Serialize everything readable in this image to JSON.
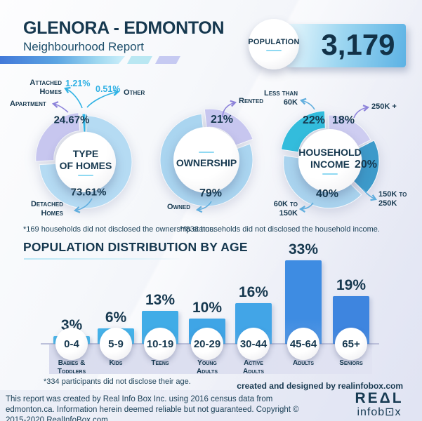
{
  "header": {
    "title": "GLENORA - EDMONTON",
    "subtitle": "Neighbourhood Report",
    "population_label": "POPULATION",
    "population_value": "3,179"
  },
  "accent_colors": {
    "navy_text": "#16384f",
    "cyan_accent": "#2eb0e4",
    "purple_arrow": "#8d83da",
    "blue_arrow": "#61aede"
  },
  "chart_data": [
    {
      "type": "pie",
      "title": "TYPE\nOF HOMES",
      "title_flat": "TYPE OF HOMES",
      "legend_position": "callouts",
      "slices": [
        {
          "label": "Other",
          "value": 0.51,
          "display": "0.51%",
          "color": "#1f7499",
          "explode": 2
        },
        {
          "label": "Detached Homes",
          "value": 73.61,
          "display": "73.61%",
          "color": "#b5dbf3",
          "explode": 0
        },
        {
          "label": "Apartment",
          "value": 24.67,
          "display": "24.67%",
          "color": "#c7c6ef",
          "explode": 7
        },
        {
          "label": "Attached Homes",
          "value": 1.21,
          "display": "1.21%",
          "color": "#2cb4e6",
          "explode": 3
        }
      ]
    },
    {
      "type": "pie",
      "title": "OWNERSHIP",
      "title_flat": "OWNERSHIP",
      "legend_position": "callouts",
      "slices": [
        {
          "label": "Rented",
          "value": 21,
          "display": "21%",
          "color": "#c7c6ef",
          "explode": 8
        },
        {
          "label": "Owned",
          "value": 79,
          "display": "79%",
          "color": "#aad5f0",
          "explode": 0
        }
      ]
    },
    {
      "type": "pie",
      "title": "HOUSEHOLD\nINCOME",
      "title_flat": "HOUSEHOLD INCOME",
      "legend_position": "callouts",
      "slices": [
        {
          "label": "250K +",
          "value": 18,
          "display": "18%",
          "color": "#cecdf1",
          "explode": 0
        },
        {
          "label": "150K to 250K",
          "value": 20,
          "display": "20%",
          "color": "#3d9aca",
          "explode": 5
        },
        {
          "label": "60K to 150K",
          "value": 40,
          "display": "40%",
          "color": "#a9d3ee",
          "explode": 3
        },
        {
          "label": "Less than 60K",
          "value": 22,
          "display": "22%",
          "color": "#33bcdc",
          "explode": 8
        }
      ]
    },
    {
      "type": "bar",
      "title": "POPULATION DISTRIBUTION BY AGE",
      "unit": "%",
      "categories": [
        "0-4",
        "5-9",
        "10-19",
        "20-29",
        "30-44",
        "45-64",
        "65+"
      ],
      "group_labels": [
        "Babies &\nToddlers",
        "Kids",
        "Teens",
        "Young\nAdults",
        "Active\nAdults",
        "Adults",
        "Seniors"
      ],
      "values": [
        3,
        6,
        13,
        10,
        16,
        33,
        19
      ],
      "colors": [
        "#4bb6ea",
        "#45b2e9",
        "#40ace7",
        "#3fa5e6",
        "#42a5e7",
        "#3e8ce2",
        "#3e85df"
      ],
      "ylim": [
        0,
        35
      ],
      "grid": false
    }
  ],
  "callouts": {
    "homes": {
      "attached": "Attached\nHomes",
      "attached_pct": "1.21%",
      "other_pct": "0.51%",
      "other": "Other",
      "apartment": "Apartment",
      "detached": "Detached\nHomes"
    },
    "ownership": {
      "rented": "Rented",
      "owned": "Owned"
    },
    "income": {
      "less60": "Less than\n60K",
      "plus250": "250K +",
      "r150_250": "150K to\n250K",
      "r60_150": "60K to\n150K"
    }
  },
  "notes": {
    "ownership_note": "*169 households did not disclosed the ownership status.",
    "income_note": "**838 households did not disclosed the household income.",
    "age_note": "*334 participants did not disclose their age.",
    "credit": "created and designed by realinfobox.com"
  },
  "footer": {
    "disclaimer": "This report was created by Real Info Box Inc. using 2016 census data from edmonton.ca. Information herein deemed reliable but not guaranteed. Copyright © 2015-2020 RealInfoBox.com",
    "logo_line1": "REΔL",
    "logo_line2": "infob⊡x"
  }
}
